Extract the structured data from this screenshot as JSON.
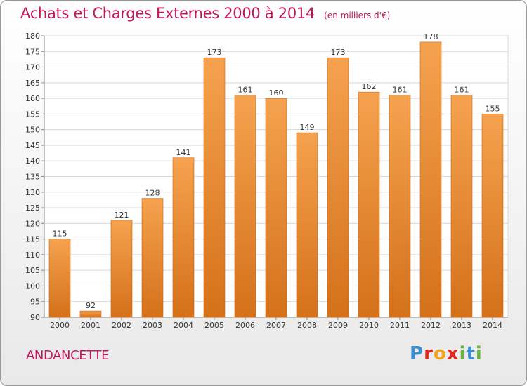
{
  "header": {
    "title": "Achats et Charges Externes 2000 à 2014",
    "unit": "(en milliers d'€)"
  },
  "footer": {
    "location": "ANDANCETTE",
    "brand": "Proxiti"
  },
  "colors": {
    "bar_top": "#f5a24e",
    "bar_bottom": "#d4711a",
    "title": "#c2185b"
  },
  "chart_data": {
    "type": "bar",
    "title": "Achats et Charges Externes 2000 à 2014",
    "subtitle": "(en milliers d'€)",
    "categories": [
      "2000",
      "2001",
      "2002",
      "2003",
      "2004",
      "2005",
      "2006",
      "2007",
      "2008",
      "2009",
      "2010",
      "2011",
      "2012",
      "2013",
      "2014"
    ],
    "values": [
      115,
      92,
      121,
      128,
      141,
      173,
      161,
      160,
      149,
      173,
      162,
      161,
      178,
      161,
      155
    ],
    "ylim": [
      90,
      180
    ],
    "yticks": [
      90,
      95,
      100,
      105,
      110,
      115,
      120,
      125,
      130,
      135,
      140,
      145,
      150,
      155,
      160,
      165,
      170,
      175,
      180
    ],
    "grid": true,
    "legend": "none"
  }
}
